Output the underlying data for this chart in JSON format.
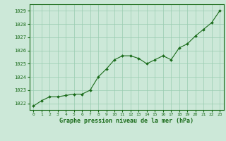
{
  "x": [
    0,
    1,
    2,
    3,
    4,
    5,
    6,
    7,
    8,
    9,
    10,
    11,
    12,
    13,
    14,
    15,
    16,
    17,
    18,
    19,
    20,
    21,
    22,
    23
  ],
  "y": [
    1021.8,
    1022.2,
    1022.5,
    1022.5,
    1022.6,
    1022.7,
    1022.7,
    1023.0,
    1024.0,
    1024.6,
    1025.3,
    1025.6,
    1025.6,
    1025.4,
    1025.0,
    1025.3,
    1025.6,
    1025.3,
    1026.2,
    1026.5,
    1027.1,
    1027.6,
    1028.1,
    1029.0
  ],
  "ylim": [
    1021.5,
    1029.5
  ],
  "yticks": [
    1022,
    1023,
    1024,
    1025,
    1026,
    1027,
    1028,
    1029
  ],
  "xticks": [
    0,
    1,
    2,
    3,
    4,
    5,
    6,
    7,
    8,
    9,
    10,
    11,
    12,
    13,
    14,
    15,
    16,
    17,
    18,
    19,
    20,
    21,
    22,
    23
  ],
  "xlabel": "Graphe pression niveau de la mer (hPa)",
  "line_color": "#1a6b1a",
  "marker_color": "#1a6b1a",
  "bg_color": "#cce8d8",
  "grid_color": "#99ccb0",
  "axis_color": "#1a6b1a",
  "tick_color": "#1a6b1a",
  "label_color": "#1a6b1a"
}
